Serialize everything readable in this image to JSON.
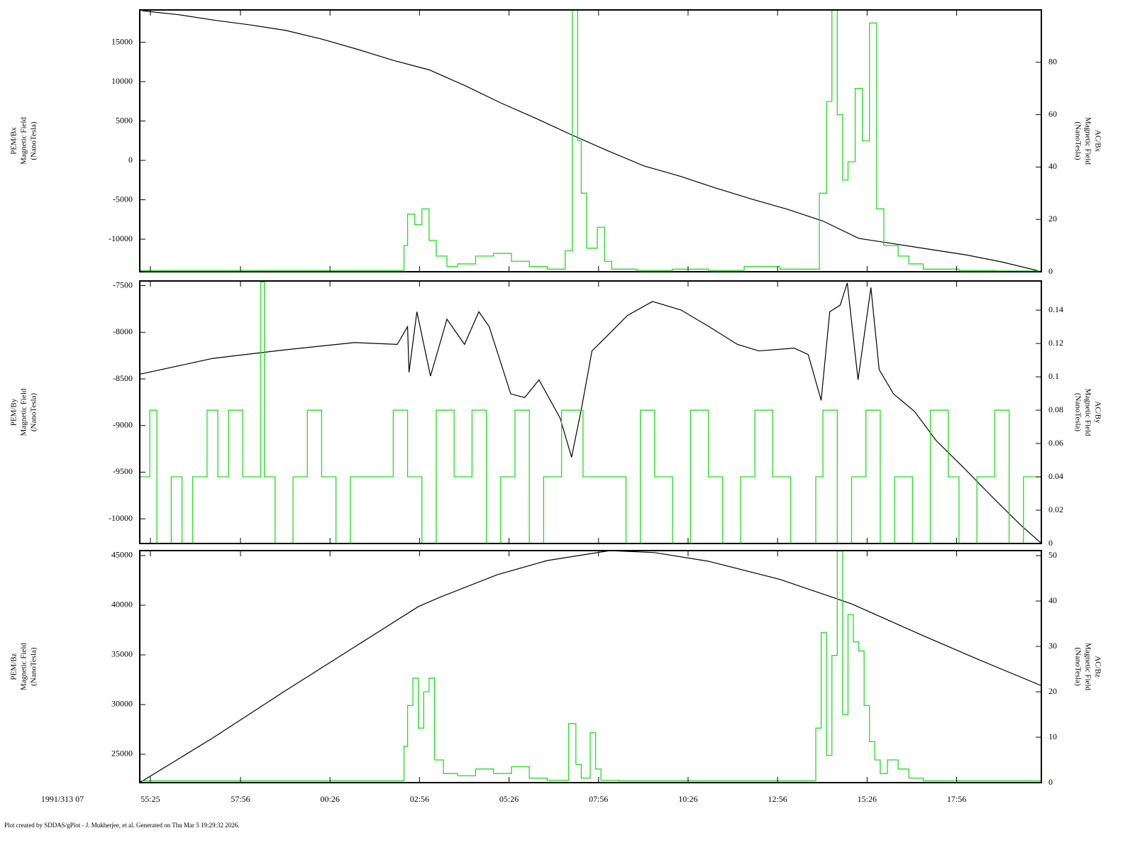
{
  "chart_data": [
    {
      "type": "line",
      "ylabel": [
        "PEM/Bx",
        "Magnetic Field",
        "(NanoTesla)"
      ],
      "y2label": [
        "AC/Bx",
        "Magnetic Field",
        "(NanoTesla)"
      ],
      "xlim": [
        55.12,
        80.3
      ],
      "ylim": [
        -14140,
        19100
      ],
      "yticks": [
        -10000,
        -5000,
        0,
        5000,
        10000,
        15000
      ],
      "y2lim": [
        0,
        100
      ],
      "y2ticks": [
        0,
        20,
        40,
        60,
        80
      ],
      "series": [
        {
          "color": "#000000",
          "x": [
            55.2,
            56.2,
            57.2,
            58.2,
            59.2,
            60.2,
            61.2,
            62.2,
            63.2,
            64.2,
            65.2,
            66.2,
            67.2,
            68.2,
            69.2,
            70.2,
            71.2,
            72.2,
            73.2,
            74.2,
            75.2,
            76.2,
            77.2,
            78.2,
            79.2,
            80.2
          ],
          "values": [
            18990,
            18500,
            17800,
            17200,
            16500,
            15400,
            14100,
            12700,
            11500,
            9500,
            7300,
            5300,
            3200,
            1200,
            -700,
            -2000,
            -3500,
            -4900,
            -6200,
            -7700,
            -9900,
            -10600,
            -11300,
            -12000,
            -12900,
            -14000
          ]
        },
        {
          "color": "#22dd22",
          "axis": "y2",
          "step": true,
          "bins": [
            55.12,
            62.5,
            62.6,
            62.8,
            63.0,
            63.2,
            63.4,
            63.7,
            64.0,
            64.5,
            65.0,
            65.5,
            66.0,
            66.5,
            67.0,
            67.2,
            67.35,
            67.45,
            67.6,
            67.9,
            68.1,
            68.3,
            69.0,
            70.0,
            71.0,
            72.0,
            73.0,
            74.1,
            74.3,
            74.45,
            74.6,
            74.75,
            74.9,
            75.1,
            75.3,
            75.5,
            75.7,
            75.9,
            76.3,
            76.6,
            77.0,
            78.0,
            79.0,
            80.3
          ],
          "values": [
            0.5,
            10,
            22,
            18,
            24,
            12,
            6,
            2,
            3,
            6,
            7,
            4,
            2,
            1,
            8,
            100,
            50,
            30,
            9,
            17,
            4,
            1,
            0.5,
            1,
            0.5,
            2,
            1,
            30,
            65,
            100,
            60,
            35,
            42,
            70,
            50,
            95,
            24,
            10,
            6,
            3,
            1,
            0.5,
            0.3
          ]
        }
      ]
    },
    {
      "type": "line",
      "ylabel": [
        "PEM/By",
        "Magnetic Field",
        "(NanoTesla)"
      ],
      "y2label": [
        "AC/By",
        "Magnetic Field",
        "(NanoTesla)"
      ],
      "xlim": [
        55.12,
        80.3
      ],
      "ylim": [
        -10265,
        -7450
      ],
      "yticks": [
        -10000,
        -9500,
        -9000,
        -8500,
        -8000,
        -7500
      ],
      "y2lim": [
        0,
        0.1575
      ],
      "y2ticks": [
        0,
        0.02,
        0.04,
        0.06,
        0.08,
        0.1,
        0.12,
        0.14
      ],
      "series": [
        {
          "color": "#000000",
          "x": [
            55.12,
            57.16,
            59.14,
            61.12,
            62.31,
            62.6,
            62.64,
            62.86,
            63.24,
            63.7,
            64.19,
            64.59,
            64.88,
            65.48,
            65.87,
            66.27,
            66.86,
            67.18,
            67.46,
            67.75,
            68.25,
            68.74,
            69.44,
            70.23,
            71.02,
            71.81,
            72.41,
            73.4,
            73.79,
            74.15,
            74.39,
            74.68,
            74.88,
            75.18,
            75.54,
            75.77,
            76.17,
            76.76,
            77.36,
            78.15,
            78.94,
            79.73,
            80.29
          ],
          "values": [
            -8450,
            -8280,
            -8190,
            -8110,
            -8130,
            -7940,
            -8430,
            -7780,
            -8470,
            -7860,
            -8130,
            -7780,
            -7940,
            -8660,
            -8700,
            -8510,
            -8920,
            -9340,
            -8810,
            -8200,
            -8010,
            -7820,
            -7670,
            -7760,
            -7940,
            -8130,
            -8200,
            -8170,
            -8240,
            -8730,
            -7780,
            -7710,
            -7470,
            -8510,
            -7520,
            -8400,
            -8660,
            -8850,
            -9160,
            -9460,
            -9770,
            -10070,
            -10260
          ]
        },
        {
          "color": "#22dd22",
          "axis": "y2",
          "step": true,
          "bins": [
            55.12,
            55.4,
            55.6,
            56.0,
            56.3,
            56.6,
            57.0,
            57.3,
            57.6,
            58.0,
            58.5,
            58.6,
            58.9,
            59.4,
            59.8,
            60.2,
            60.6,
            61.0,
            61.5,
            62.2,
            62.6,
            63.0,
            63.4,
            63.9,
            64.4,
            64.8,
            65.2,
            65.6,
            66.0,
            66.4,
            66.9,
            67.5,
            68.0,
            68.7,
            69.1,
            69.5,
            70.0,
            70.5,
            71.0,
            71.4,
            71.9,
            72.3,
            72.8,
            73.3,
            74.0,
            74.2,
            74.6,
            75.0,
            75.4,
            75.8,
            76.2,
            76.7,
            77.2,
            77.7,
            78.0,
            78.5,
            79.0,
            79.4,
            79.8,
            80.3
          ],
          "values": [
            0.04,
            0.08,
            0,
            0.04,
            0,
            0.04,
            0.08,
            0.04,
            0.08,
            0.04,
            0.157,
            0.04,
            0,
            0.04,
            0.08,
            0.04,
            0,
            0.04,
            0.04,
            0.08,
            0.04,
            0,
            0.08,
            0.04,
            0.08,
            0,
            0.04,
            0.08,
            0,
            0.04,
            0.08,
            0.04,
            0.04,
            0,
            0.08,
            0.04,
            0,
            0.08,
            0.04,
            0,
            0.04,
            0.08,
            0.04,
            0,
            0.04,
            0.08,
            0,
            0.04,
            0.08,
            0,
            0.04,
            0,
            0.08,
            0.04,
            0,
            0.04,
            0.08,
            0,
            0.04
          ]
        }
      ]
    },
    {
      "type": "line",
      "ylabel": [
        "PEM/Bz",
        "Magnetic Field",
        "(NanoTesla)"
      ],
      "y2label": [
        "AC/Bz",
        "Magnetic Field",
        "(NanoTesla)"
      ],
      "xlabel": "1991/313 07",
      "xlim": [
        55.12,
        80.3
      ],
      "ylim": [
        22140,
        45500
      ],
      "yticks": [
        25000,
        30000,
        35000,
        40000,
        45000
      ],
      "y2lim": [
        0,
        51.1
      ],
      "y2ticks": [
        0,
        10,
        20,
        30,
        40,
        50
      ],
      "xticks": [
        {
          "value": 55.4167,
          "label": "55:25"
        },
        {
          "value": 57.9333,
          "label": "57:56"
        },
        {
          "value": 60.4333,
          "label": "00:26"
        },
        {
          "value": 62.9333,
          "label": "02:56"
        },
        {
          "value": 65.4333,
          "label": "05:26"
        },
        {
          "value": 67.9333,
          "label": "07:56"
        },
        {
          "value": 70.4333,
          "label": "10:26"
        },
        {
          "value": 72.9333,
          "label": "12:56"
        },
        {
          "value": 75.4333,
          "label": "15:26"
        },
        {
          "value": 77.9333,
          "label": "17:56"
        }
      ],
      "series": [
        {
          "color": "#000000",
          "x": [
            55.12,
            57.16,
            59.14,
            61.12,
            62.9,
            63.5,
            65.1,
            66.5,
            68.25,
            69.5,
            71.0,
            73.0,
            75.0,
            77.0,
            78.5,
            80.3
          ],
          "values": [
            22140,
            26640,
            31280,
            35800,
            39860,
            40800,
            43070,
            44500,
            45500,
            45300,
            44430,
            42600,
            40140,
            36930,
            34600,
            31900
          ]
        },
        {
          "color": "#22dd22",
          "axis": "y2",
          "step": true,
          "bins": [
            55.12,
            62.5,
            62.6,
            62.75,
            62.9,
            63.05,
            63.2,
            63.35,
            63.6,
            64.0,
            64.5,
            65.0,
            65.5,
            66.0,
            66.5,
            67.1,
            67.3,
            67.45,
            67.7,
            67.85,
            68.0,
            68.5,
            74.0,
            74.15,
            74.3,
            74.45,
            74.6,
            74.75,
            74.9,
            75.05,
            75.2,
            75.35,
            75.5,
            75.65,
            75.8,
            76.0,
            76.3,
            76.6,
            77.0,
            80.3
          ],
          "values": [
            0.4,
            8,
            17,
            23,
            12,
            20,
            23,
            5,
            2,
            1.5,
            3,
            2,
            3.5,
            1,
            0.5,
            13,
            4,
            1,
            11,
            3,
            0.5,
            0.4,
            12,
            33,
            6,
            28,
            51,
            15,
            37,
            31,
            29,
            17,
            9,
            5,
            2,
            5,
            3,
            1,
            0.4
          ]
        }
      ]
    }
  ],
  "footer": "Plot created by SDDAS/gPlot - J. Mukherjee, et al.  Generated on Thu Mar 5 19:29:32 2026."
}
